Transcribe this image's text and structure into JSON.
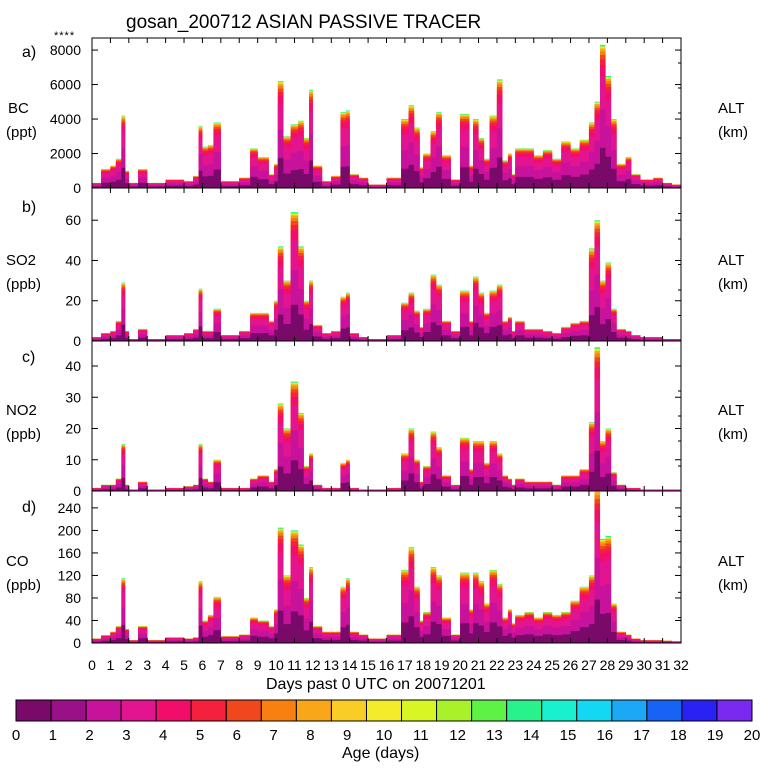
{
  "title": "gosan_200712 ASIAN PASSIVE TRACER",
  "corner_mark": "****",
  "xlabel": "Days past 0 UTC on 20071201",
  "colorbar_label": "Age (days)",
  "colorbar_ticks": [
    "0",
    "1",
    "2",
    "3",
    "4",
    "5",
    "6",
    "7",
    "8",
    "9",
    "10",
    "11",
    "12",
    "13",
    "14",
    "15",
    "16",
    "17",
    "18",
    "19",
    "20"
  ],
  "colorbar_colors": [
    "#7a0a6a",
    "#9a1088",
    "#c8129c",
    "#e31490",
    "#f20d6a",
    "#f5203d",
    "#f0481c",
    "#f78010",
    "#f9a619",
    "#f9cc26",
    "#f4ec2a",
    "#d8f524",
    "#a9f229",
    "#5ef246",
    "#27f28c",
    "#19f0cf",
    "#12d8f3",
    "#1aa8f7",
    "#1763f6",
    "#2a22f2",
    "#7a2af0"
  ],
  "chart_data": [
    {
      "type": "area",
      "panel": "a)",
      "ylabel_lines": [
        "BC",
        "(ppt)"
      ],
      "right_label_lines": [
        "ALT",
        "(km)"
      ],
      "ylim": [
        0,
        8700
      ],
      "yticks": [
        0,
        2000,
        4000,
        6000,
        8000
      ],
      "xlim": [
        0,
        32
      ],
      "xticks": [
        0,
        1,
        2,
        3,
        4,
        5,
        6,
        7,
        8,
        9,
        10,
        11,
        12,
        13,
        14,
        15,
        16,
        17,
        18,
        19,
        20,
        21,
        22,
        23,
        24,
        25,
        26,
        27,
        28,
        29,
        30,
        31,
        32
      ],
      "x": [
        0,
        0.5,
        1,
        1.3,
        1.6,
        1.8,
        2,
        2.5,
        3,
        4,
        5,
        5.5,
        5.8,
        6,
        6.3,
        6.6,
        7,
        8,
        8.6,
        9,
        9.6,
        9.9,
        10.1,
        10.4,
        10.8,
        11.2,
        11.5,
        11.8,
        12,
        12.5,
        13,
        13.5,
        13.8,
        14,
        14.5,
        15,
        16,
        16.8,
        17.2,
        17.5,
        17.8,
        18,
        18.4,
        18.7,
        19,
        19.5,
        20,
        20.5,
        20.7,
        21,
        21.3,
        21.6,
        22,
        22.3,
        22.6,
        22.8,
        23,
        23.5,
        24,
        24.5,
        25,
        25.5,
        26,
        26.5,
        27,
        27.3,
        27.6,
        27.9,
        28.2,
        28.5,
        29,
        29.3,
        29.8,
        30.5,
        31,
        31.5
      ],
      "values": [
        300,
        1100,
        1300,
        1700,
        4200,
        1000,
        300,
        1100,
        300,
        500,
        400,
        700,
        3600,
        2400,
        2500,
        3800,
        400,
        600,
        2300,
        1800,
        800,
        1400,
        6200,
        3000,
        3700,
        3900,
        2900,
        5700,
        1300,
        400,
        700,
        4400,
        4500,
        800,
        600,
        200,
        600,
        4000,
        4800,
        3500,
        1200,
        2000,
        3300,
        4400,
        1900,
        500,
        4300,
        1300,
        4000,
        2900,
        1700,
        4200,
        6300,
        1600,
        2000,
        800,
        2300,
        2300,
        1900,
        2200,
        1700,
        2700,
        2300,
        2800,
        3800,
        5000,
        8300,
        6500,
        4000,
        1400,
        1800,
        800,
        500,
        600,
        300,
        200
      ]
    },
    {
      "type": "area",
      "panel": "b)",
      "ylabel_lines": [
        "SO2",
        "(ppb)"
      ],
      "right_label_lines": [
        "ALT",
        "(km)"
      ],
      "ylim": [
        0,
        76
      ],
      "yticks": [
        0,
        20,
        40,
        60
      ],
      "xlim": [
        0,
        32
      ],
      "xticks": [
        0,
        1,
        2,
        3,
        4,
        5,
        6,
        7,
        8,
        9,
        10,
        11,
        12,
        13,
        14,
        15,
        16,
        17,
        18,
        19,
        20,
        21,
        22,
        23,
        24,
        25,
        26,
        27,
        28,
        29,
        30,
        31,
        32
      ],
      "x": [
        0,
        0.5,
        1,
        1.3,
        1.6,
        1.8,
        2,
        2.5,
        3,
        4,
        5,
        5.5,
        5.8,
        6,
        6.3,
        6.6,
        7,
        8,
        8.6,
        9,
        9.6,
        9.9,
        10.1,
        10.4,
        10.8,
        11.2,
        11.5,
        11.8,
        12,
        12.5,
        13,
        13.5,
        13.8,
        14,
        14.5,
        15,
        16,
        16.8,
        17.2,
        17.5,
        17.8,
        18,
        18.4,
        18.7,
        19,
        19.5,
        20,
        20.5,
        20.7,
        21,
        21.3,
        21.6,
        22,
        22.3,
        22.6,
        22.8,
        23,
        23.5,
        24,
        24.5,
        25,
        25.5,
        26,
        26.5,
        27,
        27.3,
        27.6,
        27.9,
        28.2,
        28.5,
        29,
        29.3,
        29.8,
        30.5,
        31,
        31.5
      ],
      "values": [
        2,
        4,
        5,
        10,
        29,
        5,
        1,
        6,
        1,
        3,
        4,
        6,
        26,
        5,
        5,
        16,
        3,
        5,
        14,
        14,
        10,
        20,
        47,
        30,
        64,
        47,
        20,
        30,
        8,
        4,
        5,
        22,
        24,
        4,
        2,
        1,
        3,
        19,
        24,
        15,
        7,
        16,
        33,
        28,
        10,
        5,
        25,
        10,
        32,
        24,
        14,
        25,
        28,
        10,
        12,
        5,
        10,
        6,
        6,
        5,
        4,
        7,
        9,
        10,
        46,
        60,
        30,
        39,
        16,
        6,
        5,
        3,
        2,
        2,
        1,
        1
      ]
    },
    {
      "type": "area",
      "panel": "c)",
      "ylabel_lines": [
        "NO2",
        "(ppb)"
      ],
      "right_label_lines": [
        "ALT",
        "(km)"
      ],
      "ylim": [
        0,
        48
      ],
      "yticks": [
        0,
        10,
        20,
        30,
        40
      ],
      "xlim": [
        0,
        32
      ],
      "xticks": [
        0,
        1,
        2,
        3,
        4,
        5,
        6,
        7,
        8,
        9,
        10,
        11,
        12,
        13,
        14,
        15,
        16,
        17,
        18,
        19,
        20,
        21,
        22,
        23,
        24,
        25,
        26,
        27,
        28,
        29,
        30,
        31,
        32
      ],
      "x": [
        0,
        0.5,
        1,
        1.3,
        1.6,
        1.8,
        2,
        2.5,
        3,
        4,
        5,
        5.5,
        5.8,
        6,
        6.3,
        6.6,
        7,
        8,
        8.6,
        9,
        9.6,
        9.9,
        10.1,
        10.4,
        10.8,
        11.2,
        11.5,
        11.8,
        12,
        12.5,
        13,
        13.5,
        13.8,
        14,
        14.5,
        15,
        16,
        16.8,
        17.2,
        17.5,
        17.8,
        18,
        18.4,
        18.7,
        19,
        19.5,
        20,
        20.5,
        20.7,
        21,
        21.3,
        21.6,
        22,
        22.3,
        22.6,
        22.8,
        23,
        23.5,
        24,
        24.5,
        25,
        25.5,
        26,
        26.5,
        27,
        27.3,
        27.6,
        27.9,
        28.2,
        28.5,
        29,
        29.3,
        29.8,
        30.5,
        31,
        31.5
      ],
      "values": [
        1,
        2,
        2,
        4,
        15,
        2,
        0.5,
        3,
        0.5,
        1,
        1.5,
        2,
        15,
        4,
        3,
        10,
        1,
        1,
        4,
        5,
        3,
        7,
        28,
        20,
        35,
        25,
        8,
        12,
        2,
        1,
        1,
        9,
        10,
        1,
        0.5,
        0.5,
        1,
        12,
        20,
        10,
        3,
        8,
        19,
        14,
        5,
        2,
        17,
        7,
        16,
        16,
        9,
        16,
        12,
        5,
        4,
        2,
        4,
        3,
        3,
        3,
        2,
        5,
        5,
        7,
        22,
        46,
        16,
        20,
        6,
        2,
        1,
        1,
        0.5,
        0.5,
        0.5,
        0.5
      ]
    },
    {
      "type": "area",
      "panel": "d)",
      "ylabel_lines": [
        "CO",
        "(ppb)"
      ],
      "right_label_lines": [
        "ALT",
        "(km)"
      ],
      "ylim": [
        0,
        270
      ],
      "yticks": [
        0,
        40,
        80,
        120,
        160,
        200,
        240
      ],
      "xlim": [
        0,
        32
      ],
      "xticks": [
        0,
        1,
        2,
        3,
        4,
        5,
        6,
        7,
        8,
        9,
        10,
        11,
        12,
        13,
        14,
        15,
        16,
        17,
        18,
        19,
        20,
        21,
        22,
        23,
        24,
        25,
        26,
        27,
        28,
        29,
        30,
        31,
        32
      ],
      "x": [
        0,
        0.5,
        1,
        1.3,
        1.6,
        1.8,
        2,
        2.5,
        3,
        4,
        5,
        5.5,
        5.8,
        6,
        6.3,
        6.6,
        7,
        8,
        8.6,
        9,
        9.6,
        9.9,
        10.1,
        10.4,
        10.8,
        11.2,
        11.5,
        11.8,
        12,
        12.5,
        13,
        13.5,
        13.8,
        14,
        14.5,
        15,
        16,
        16.8,
        17.2,
        17.5,
        17.8,
        18,
        18.4,
        18.7,
        19,
        19.5,
        20,
        20.5,
        20.7,
        21,
        21.3,
        21.6,
        22,
        22.3,
        22.6,
        22.8,
        23,
        23.5,
        24,
        24.5,
        25,
        25.5,
        26,
        26.5,
        27,
        27.3,
        27.6,
        27.9,
        28.2,
        28.5,
        29,
        29.3,
        29.8,
        30.5,
        31,
        31.5
      ],
      "values": [
        8,
        14,
        20,
        30,
        115,
        25,
        5,
        30,
        5,
        10,
        8,
        10,
        110,
        40,
        50,
        82,
        12,
        15,
        45,
        40,
        30,
        60,
        205,
        120,
        200,
        175,
        80,
        135,
        30,
        20,
        20,
        100,
        115,
        20,
        15,
        8,
        15,
        130,
        170,
        100,
        40,
        55,
        135,
        120,
        45,
        15,
        125,
        60,
        125,
        110,
        70,
        130,
        105,
        45,
        60,
        35,
        50,
        55,
        45,
        55,
        50,
        55,
        75,
        100,
        120,
        275,
        185,
        190,
        70,
        20,
        15,
        8,
        5,
        5,
        4,
        3
      ]
    }
  ]
}
